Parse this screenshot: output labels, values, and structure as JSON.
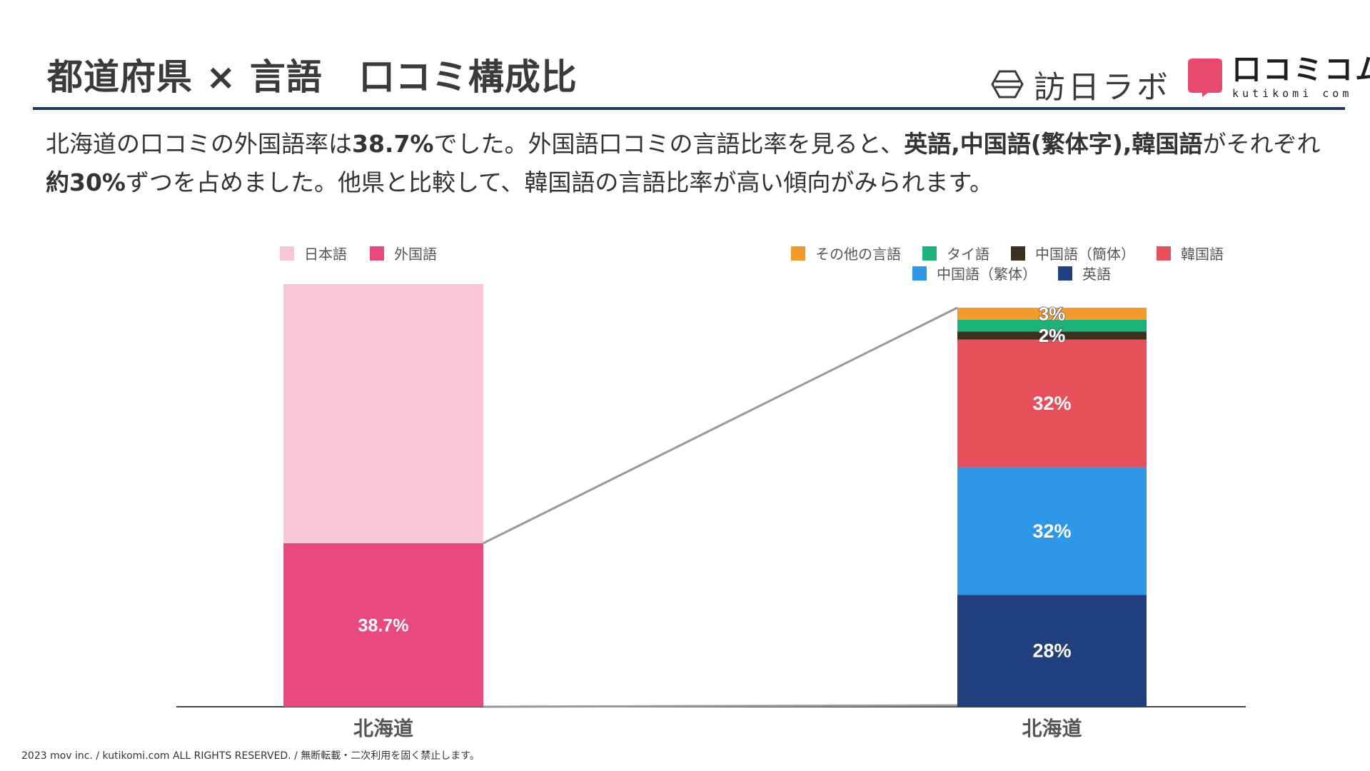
{
  "header": {
    "title": "都道府県 × 言語　口コミ構成比",
    "logo_houjin": "訪日ラボ",
    "logo_kuchi": "口コミコム",
    "logo_kuchi_sub": "kutikomi com"
  },
  "description": {
    "t1": "北海道の口コミの外国語率は",
    "b1": "38.7%",
    "t2": "でした。外国語口コミの言語比率を見ると、",
    "b2": "英語,中国語(繁体字),韓国語",
    "t3": "がそれぞれ",
    "b3": "約30%",
    "t4": "ずつを占めました。他県と比較して、韓国語の言語比率が高い傾向がみられます。"
  },
  "colors": {
    "japanese": "#f8c8d8",
    "foreign": "#e84a7f",
    "other": "#f39a2c",
    "thai": "#1db27a",
    "chinese_simplified": "#3d3020",
    "korean": "#e5505b",
    "chinese_traditional": "#2f97e8",
    "english": "#203f7c",
    "connector": "#999999",
    "axis": "#444444"
  },
  "chart_data": [
    {
      "type": "bar",
      "stacked": true,
      "categories": [
        "北海道"
      ],
      "series": [
        {
          "name": "外国語",
          "values": [
            38.7
          ],
          "label": "38.7%"
        },
        {
          "name": "日本語",
          "values": [
            61.3
          ],
          "label": ""
        }
      ],
      "legend": [
        "日本語",
        "外国語"
      ],
      "ylim": [
        0,
        100
      ]
    },
    {
      "type": "bar",
      "stacked": true,
      "categories": [
        "北海道"
      ],
      "series": [
        {
          "name": "英語",
          "values": [
            28
          ],
          "label": "28%"
        },
        {
          "name": "中国語（繁体）",
          "values": [
            32
          ],
          "label": "32%"
        },
        {
          "name": "韓国語",
          "values": [
            32
          ],
          "label": "32%"
        },
        {
          "name": "中国語（簡体）",
          "values": [
            2
          ],
          "label": "2%"
        },
        {
          "name": "タイ語",
          "values": [
            3
          ],
          "label": ""
        },
        {
          "name": "その他の言語",
          "values": [
            3
          ],
          "label": "3%"
        }
      ],
      "legend_row1": [
        "その他の言語",
        "タイ語",
        "中国語（簡体）",
        "韓国語"
      ],
      "legend_row2": [
        "中国語（繁体）",
        "英語"
      ],
      "ylim": [
        0,
        100
      ]
    }
  ],
  "footer": "2023 mov inc. / kutikomi.com ALL RIGHTS RESERVED. / 無断転載・二次利用を固く禁止します。"
}
